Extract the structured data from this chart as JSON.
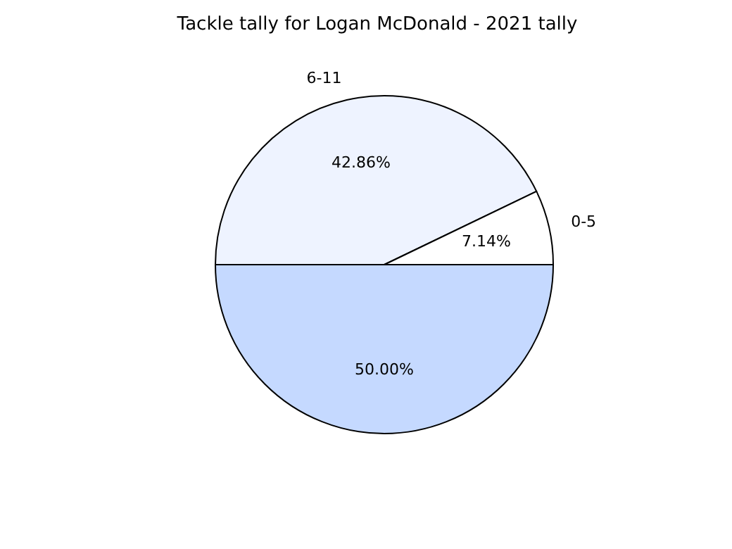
{
  "chart_data": {
    "type": "pie",
    "title": "Tackle tally for Logan McDonald - 2021 tally",
    "categories": [
      "6-11",
      "0-5",
      null
    ],
    "values": [
      42.86,
      7.14,
      50.0
    ],
    "value_labels": [
      "42.86%",
      "7.14%",
      "50.00%"
    ],
    "colors": [
      "#eef3ff",
      "#ffffff",
      "#c5d9ff"
    ]
  }
}
